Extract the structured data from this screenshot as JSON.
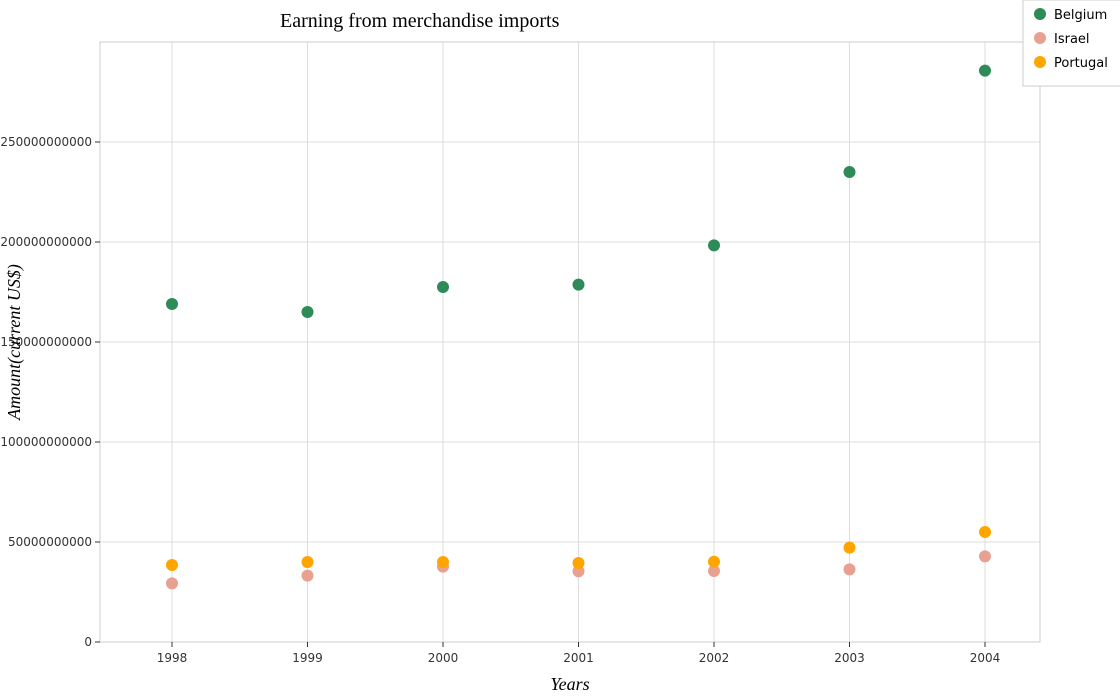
{
  "chart_data": {
    "type": "scatter",
    "title": "Earning from merchandise imports",
    "xlabel": "Years",
    "ylabel": "Amount(current US$)",
    "categories": [
      "1998",
      "1999",
      "2000",
      "2001",
      "2002",
      "2003",
      "2004"
    ],
    "ylim": [
      0,
      300000000000
    ],
    "yticks": [
      0,
      50000000000,
      100000000000,
      150000000000,
      200000000000,
      250000000000
    ],
    "ytick_labels": [
      "0",
      "50000000000",
      "100000000000",
      "150000000000",
      "200000000000",
      "250000000000"
    ],
    "legend_position": "top-right",
    "series": [
      {
        "name": "Belgium",
        "color": "#2e8b57",
        "values": [
          169000000000,
          165000000000,
          177500000000,
          178700000000,
          198300000000,
          235000000000,
          285700000000
        ]
      },
      {
        "name": "Israel",
        "color": "#e8a090",
        "values": [
          29300000000,
          33200000000,
          37700000000,
          35400000000,
          35500000000,
          36300000000,
          42800000000
        ]
      },
      {
        "name": "Portugal",
        "color": "#ffa500",
        "values": [
          38500000000,
          40000000000,
          40000000000,
          39500000000,
          40100000000,
          47200000000,
          55000000000
        ]
      }
    ]
  }
}
